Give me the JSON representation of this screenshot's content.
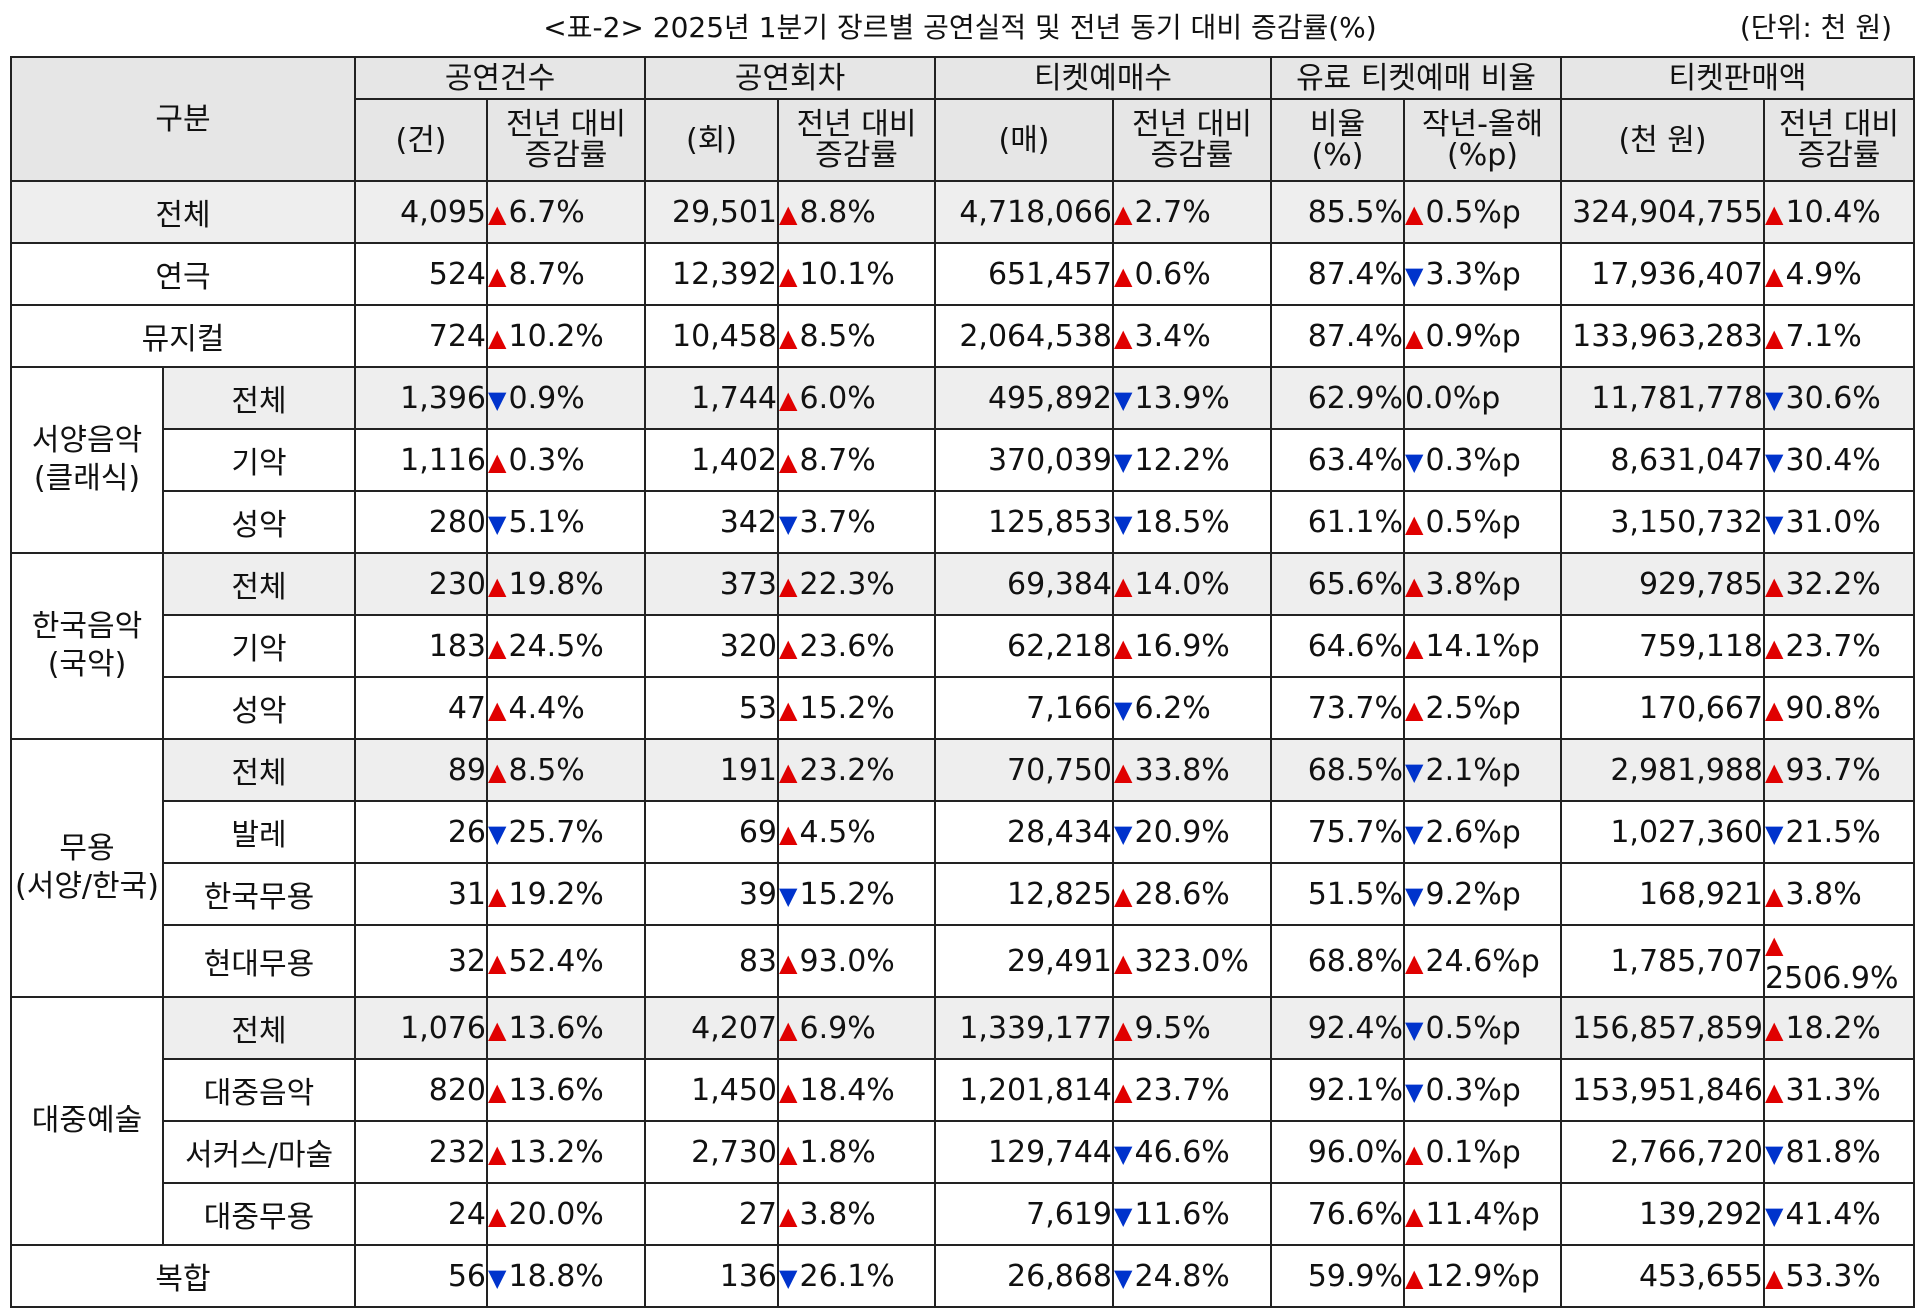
{
  "caption": {
    "title": "<표-2> 2025년 1분기 장르별 공연실적 및 전년 동기 대비 증감률(%)",
    "unit": "(단위: 천 원)"
  },
  "header": {
    "category": "구분",
    "groups": [
      "공연건수",
      "공연회차",
      "티켓예매수",
      "유료 티켓예매 비율",
      "티켓판매액"
    ],
    "sub": [
      [
        "(건)",
        "전년 대비",
        "증감률"
      ],
      [
        "(회)",
        "전년 대비",
        "증감률"
      ],
      [
        "(매)",
        "전년 대비",
        "증감률"
      ],
      [
        "비율",
        "(%)",
        "작년-올해",
        "(%p)"
      ],
      [
        "(천 원)",
        "전년 대비",
        "증감률"
      ]
    ]
  },
  "groups": {
    "classical": [
      "서양음악",
      "(클래식)"
    ],
    "korean": [
      "한국음악",
      "(국악)"
    ],
    "dance": [
      "무용",
      "(서양/한국)"
    ],
    "popular": [
      "대중예술"
    ]
  },
  "icons": {
    "up": "triangle-up-icon",
    "down": "triangle-down-icon",
    "up_color": "#e00000",
    "down_color": "#0033cc"
  },
  "rows": [
    {
      "label": "전체",
      "shade": true,
      "cells": [
        "4,095",
        [
          "up",
          "6.7%"
        ],
        "29,501",
        [
          "up",
          "8.8%"
        ],
        "4,718,066",
        [
          "up",
          "2.7%"
        ],
        "85.5%",
        [
          "up",
          "0.5%p"
        ],
        "324,904,755",
        [
          "up",
          "10.4%"
        ]
      ]
    },
    {
      "label": "연극",
      "shade": false,
      "cells": [
        "524",
        [
          "up",
          "8.7%"
        ],
        "12,392",
        [
          "up",
          "10.1%"
        ],
        "651,457",
        [
          "up",
          "0.6%"
        ],
        "87.4%",
        [
          "down",
          "3.3%p"
        ],
        "17,936,407",
        [
          "up",
          "4.9%"
        ]
      ]
    },
    {
      "label": "뮤지컬",
      "shade": false,
      "cells": [
        "724",
        [
          "up",
          "10.2%"
        ],
        "10,458",
        [
          "up",
          "8.5%"
        ],
        "2,064,538",
        [
          "up",
          "3.4%"
        ],
        "87.4%",
        [
          "up",
          "0.9%p"
        ],
        "133,963,283",
        [
          "up",
          "7.1%"
        ]
      ]
    },
    {
      "label": "전체",
      "group": "classical",
      "shade": true,
      "cells": [
        "1,396",
        [
          "down",
          "0.9%"
        ],
        "1,744",
        [
          "up",
          "6.0%"
        ],
        "495,892",
        [
          "down",
          "13.9%"
        ],
        "62.9%",
        [
          "none",
          "0.0%p"
        ],
        "11,781,778",
        [
          "down",
          "30.6%"
        ]
      ]
    },
    {
      "label": "기악",
      "group": "classical",
      "shade": false,
      "cells": [
        "1,116",
        [
          "up",
          "0.3%"
        ],
        "1,402",
        [
          "up",
          "8.7%"
        ],
        "370,039",
        [
          "down",
          "12.2%"
        ],
        "63.4%",
        [
          "down",
          "0.3%p"
        ],
        "8,631,047",
        [
          "down",
          "30.4%"
        ]
      ]
    },
    {
      "label": "성악",
      "group": "classical",
      "shade": false,
      "cells": [
        "280",
        [
          "down",
          "5.1%"
        ],
        "342",
        [
          "down",
          "3.7%"
        ],
        "125,853",
        [
          "down",
          "18.5%"
        ],
        "61.1%",
        [
          "up",
          "0.5%p"
        ],
        "3,150,732",
        [
          "down",
          "31.0%"
        ]
      ]
    },
    {
      "label": "전체",
      "group": "korean",
      "shade": true,
      "cells": [
        "230",
        [
          "up",
          "19.8%"
        ],
        "373",
        [
          "up",
          "22.3%"
        ],
        "69,384",
        [
          "up",
          "14.0%"
        ],
        "65.6%",
        [
          "up",
          "3.8%p"
        ],
        "929,785",
        [
          "up",
          "32.2%"
        ]
      ]
    },
    {
      "label": "기악",
      "group": "korean",
      "shade": false,
      "cells": [
        "183",
        [
          "up",
          "24.5%"
        ],
        "320",
        [
          "up",
          "23.6%"
        ],
        "62,218",
        [
          "up",
          "16.9%"
        ],
        "64.6%",
        [
          "up",
          "14.1%p"
        ],
        "759,118",
        [
          "up",
          "23.7%"
        ]
      ]
    },
    {
      "label": "성악",
      "group": "korean",
      "shade": false,
      "cells": [
        "47",
        [
          "up",
          "4.4%"
        ],
        "53",
        [
          "up",
          "15.2%"
        ],
        "7,166",
        [
          "down",
          "6.2%"
        ],
        "73.7%",
        [
          "up",
          "2.5%p"
        ],
        "170,667",
        [
          "up",
          "90.8%"
        ]
      ]
    },
    {
      "label": "전체",
      "group": "dance",
      "shade": true,
      "cells": [
        "89",
        [
          "up",
          "8.5%"
        ],
        "191",
        [
          "up",
          "23.2%"
        ],
        "70,750",
        [
          "up",
          "33.8%"
        ],
        "68.5%",
        [
          "down",
          "2.1%p"
        ],
        "2,981,988",
        [
          "up",
          "93.7%"
        ]
      ]
    },
    {
      "label": "발레",
      "group": "dance",
      "shade": false,
      "cells": [
        "26",
        [
          "down",
          "25.7%"
        ],
        "69",
        [
          "up",
          "4.5%"
        ],
        "28,434",
        [
          "down",
          "20.9%"
        ],
        "75.7%",
        [
          "down",
          "2.6%p"
        ],
        "1,027,360",
        [
          "down",
          "21.5%"
        ]
      ]
    },
    {
      "label": "한국무용",
      "group": "dance",
      "shade": false,
      "cells": [
        "31",
        [
          "up",
          "19.2%"
        ],
        "39",
        [
          "down",
          "15.2%"
        ],
        "12,825",
        [
          "up",
          "28.6%"
        ],
        "51.5%",
        [
          "down",
          "9.2%p"
        ],
        "168,921",
        [
          "up",
          "3.8%"
        ]
      ]
    },
    {
      "label": "현대무용",
      "group": "dance",
      "shade": false,
      "cells": [
        "32",
        [
          "up",
          "52.4%"
        ],
        "83",
        [
          "up",
          "93.0%"
        ],
        "29,491",
        [
          "up",
          "323.0%"
        ],
        "68.8%",
        [
          "up",
          "24.6%p"
        ],
        "1,785,707",
        [
          "up",
          "2506.9%"
        ]
      ]
    },
    {
      "label": "전체",
      "group": "popular",
      "shade": true,
      "cells": [
        "1,076",
        [
          "up",
          "13.6%"
        ],
        "4,207",
        [
          "up",
          "6.9%"
        ],
        "1,339,177",
        [
          "up",
          "9.5%"
        ],
        "92.4%",
        [
          "down",
          "0.5%p"
        ],
        "156,857,859",
        [
          "up",
          "18.2%"
        ]
      ]
    },
    {
      "label": "대중음악",
      "group": "popular",
      "shade": false,
      "cells": [
        "820",
        [
          "up",
          "13.6%"
        ],
        "1,450",
        [
          "up",
          "18.4%"
        ],
        "1,201,814",
        [
          "up",
          "23.7%"
        ],
        "92.1%",
        [
          "down",
          "0.3%p"
        ],
        "153,951,846",
        [
          "up",
          "31.3%"
        ]
      ]
    },
    {
      "label": "서커스/마술",
      "group": "popular",
      "shade": false,
      "cells": [
        "232",
        [
          "up",
          "13.2%"
        ],
        "2,730",
        [
          "up",
          "1.8%"
        ],
        "129,744",
        [
          "down",
          "46.6%"
        ],
        "96.0%",
        [
          "up",
          "0.1%p"
        ],
        "2,766,720",
        [
          "down",
          "81.8%"
        ]
      ]
    },
    {
      "label": "대중무용",
      "group": "popular",
      "shade": false,
      "cells": [
        "24",
        [
          "up",
          "20.0%"
        ],
        "27",
        [
          "up",
          "3.8%"
        ],
        "7,619",
        [
          "down",
          "11.6%"
        ],
        "76.6%",
        [
          "up",
          "11.4%p"
        ],
        "139,292",
        [
          "down",
          "41.4%"
        ]
      ]
    },
    {
      "label": "복합",
      "shade": false,
      "cells": [
        "56",
        [
          "down",
          "18.8%"
        ],
        "136",
        [
          "down",
          "26.1%"
        ],
        "26,868",
        [
          "down",
          "24.8%"
        ],
        "59.9%",
        [
          "up",
          "12.9%p"
        ],
        "453,655",
        [
          "up",
          "53.3%"
        ]
      ]
    }
  ]
}
